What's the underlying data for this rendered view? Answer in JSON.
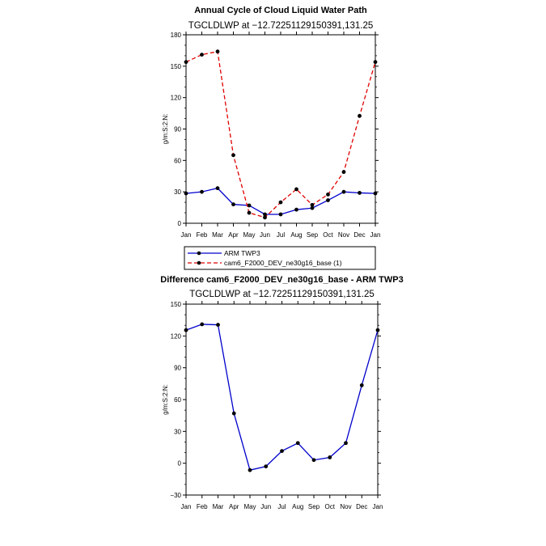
{
  "chart_data": [
    {
      "type": "line",
      "title": "Annual Cycle of Cloud Liquid Water Path",
      "subtitle": "TGCLDLWP at −12.72251129150391,131.25",
      "ylabel": "g/m:S:2:N:",
      "xlabel": "",
      "categories": [
        "Jan",
        "Feb",
        "Mar",
        "Apr",
        "May",
        "Jun",
        "Jul",
        "Aug",
        "Sep",
        "Oct",
        "Nov",
        "Dec",
        "Jan"
      ],
      "ylim": [
        0,
        180
      ],
      "yticks": [
        0,
        30,
        60,
        90,
        120,
        150,
        180
      ],
      "grid": false,
      "legend_placement": "below",
      "series": [
        {
          "name": "ARM TWP3",
          "color": "#0000cc",
          "dash": "solid",
          "values": [
            28.5,
            30,
            33.5,
            18,
            17,
            8.5,
            8.5,
            13,
            14.5,
            22,
            30,
            29,
            28.5
          ]
        },
        {
          "name": "cam6_F2000_DEV_ne30g16_base (1)",
          "color": "#e00000",
          "dash": "dashed",
          "values": [
            154,
            161,
            164,
            65,
            10,
            5.5,
            20,
            32.5,
            17.5,
            27.5,
            49,
            102.5,
            154
          ]
        }
      ]
    },
    {
      "type": "line",
      "title": "Difference cam6_F2000_DEV_ne30g16_base - ARM TWP3",
      "subtitle": "TGCLDLWP at −12.72251129150391,131.25",
      "ylabel": "g/m:S:2:N:",
      "xlabel": "",
      "categories": [
        "Jan",
        "Feb",
        "Mar",
        "Apr",
        "May",
        "Jun",
        "Jul",
        "Aug",
        "Sep",
        "Oct",
        "Nov",
        "Dec",
        "Jan"
      ],
      "ylim": [
        -30,
        150
      ],
      "yticks": [
        -30,
        0,
        30,
        60,
        90,
        120,
        150
      ],
      "grid": false,
      "series": [
        {
          "color": "#0000cc",
          "dash": "solid",
          "values": [
            125.5,
            131,
            130.5,
            47,
            -6.5,
            -3,
            11.5,
            19,
            3,
            5.5,
            19,
            73.5,
            125.5
          ]
        }
      ]
    }
  ]
}
